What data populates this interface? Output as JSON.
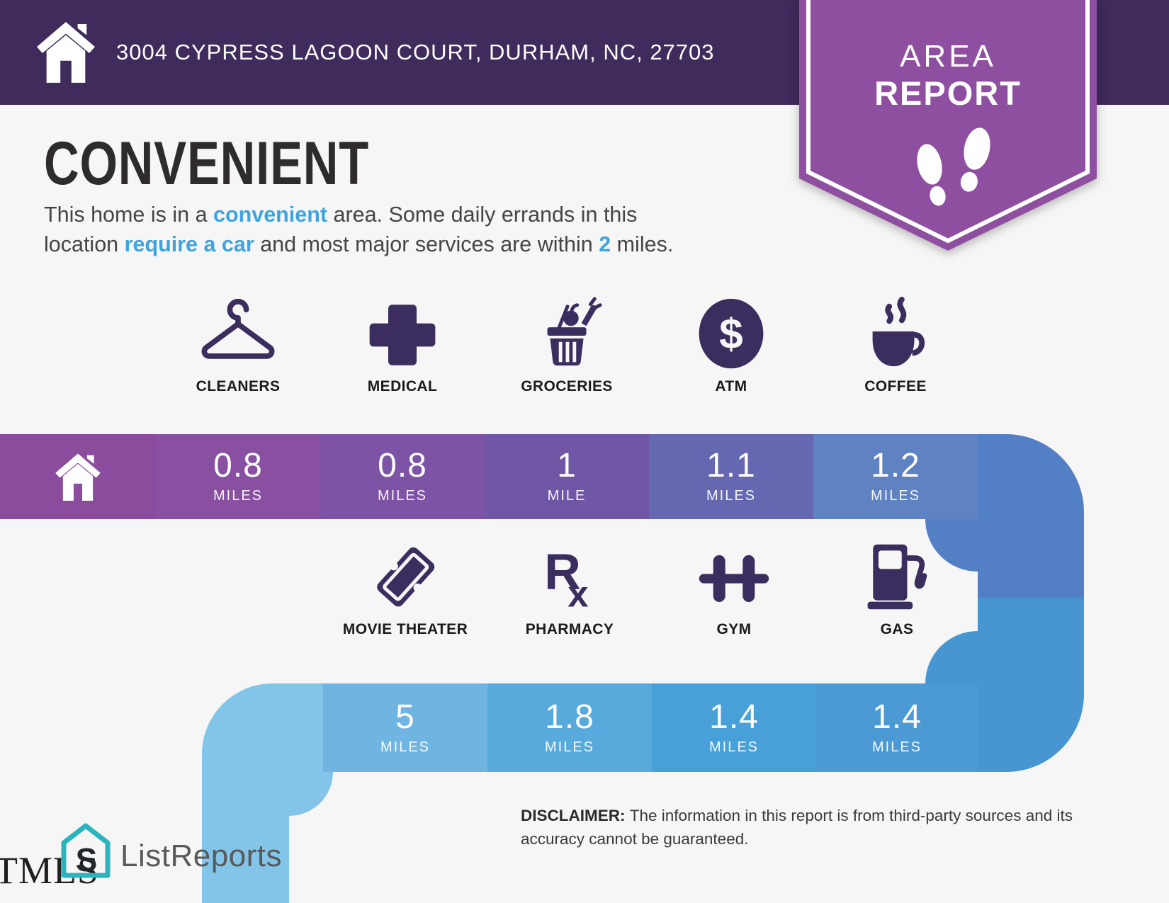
{
  "header": {
    "address": "3004 CYPRESS LAGOON COURT, DURHAM, NC, 27703",
    "background_color": "#3F2B5C"
  },
  "badge": {
    "title_line1": "AREA",
    "title_line2": "REPORT",
    "color": "#8F4FA0"
  },
  "headline": "CONVENIENT",
  "description_lines": [
    [
      {
        "t": "This home is in a "
      },
      {
        "t": "convenient",
        "hl": true
      },
      {
        "t": " area. Some daily errands in this"
      }
    ],
    [
      {
        "t": "location "
      },
      {
        "t": "require a car",
        "hl": true
      },
      {
        "t": " and most major services are within "
      },
      {
        "t": "2",
        "hl": true
      },
      {
        "t": " miles."
      }
    ]
  ],
  "amenities": {
    "row1": [
      {
        "label": "CLEANERS",
        "icon": "hanger-icon",
        "distance": "0.8",
        "unit": "MILES",
        "color": "#8950A2"
      },
      {
        "label": "MEDICAL",
        "icon": "medical-cross-icon",
        "distance": "0.8",
        "unit": "MILES",
        "color": "#7D53A6"
      },
      {
        "label": "GROCERIES",
        "icon": "grocery-basket-icon",
        "distance": "1",
        "unit": "MILE",
        "color": "#6F57A5"
      },
      {
        "label": "ATM",
        "icon": "atm-dollar-icon",
        "distance": "1.1",
        "unit": "MILES",
        "color": "#6667B1"
      },
      {
        "label": "COFFEE",
        "icon": "coffee-cup-icon",
        "distance": "1.2",
        "unit": "MILES",
        "color": "#5F82C3"
      }
    ],
    "row2": [
      {
        "label": "MOVIE THEATER",
        "icon": "ticket-icon",
        "distance": "5",
        "unit": "MILES",
        "color": "#70B5E1"
      },
      {
        "label": "PHARMACY",
        "icon": "rx-icon",
        "distance": "1.8",
        "unit": "MILES",
        "color": "#59AADC"
      },
      {
        "label": "GYM",
        "icon": "dumbbell-icon",
        "distance": "1.4",
        "unit": "MILES",
        "color": "#47A1D8"
      },
      {
        "label": "GAS",
        "icon": "gas-pump-icon",
        "distance": "1.4",
        "unit": "MILES",
        "color": "#4C9AD4"
      }
    ],
    "home_segment_color": "#8C4C9D",
    "band2_left_color": "#83C5E8",
    "connector_top_color": "#5380C5",
    "connector_bottom_color": "#4795D1"
  },
  "footer": {
    "mls_logo_text": "TMLS",
    "brand_name": "ListReports",
    "brand_teal": "#2CB4BE",
    "disclaimer_label": "DISCLAIMER:",
    "disclaimer_lines": [
      "The information in this report is from third-party sources and its",
      "accuracy cannot be guaranteed."
    ]
  },
  "accent_colors": {
    "highlight_blue": "#3FA4DD",
    "icon_purple": "#3B2D5E",
    "badge_purple": "#8F4FA0",
    "header_purple": "#3F2B5C"
  }
}
